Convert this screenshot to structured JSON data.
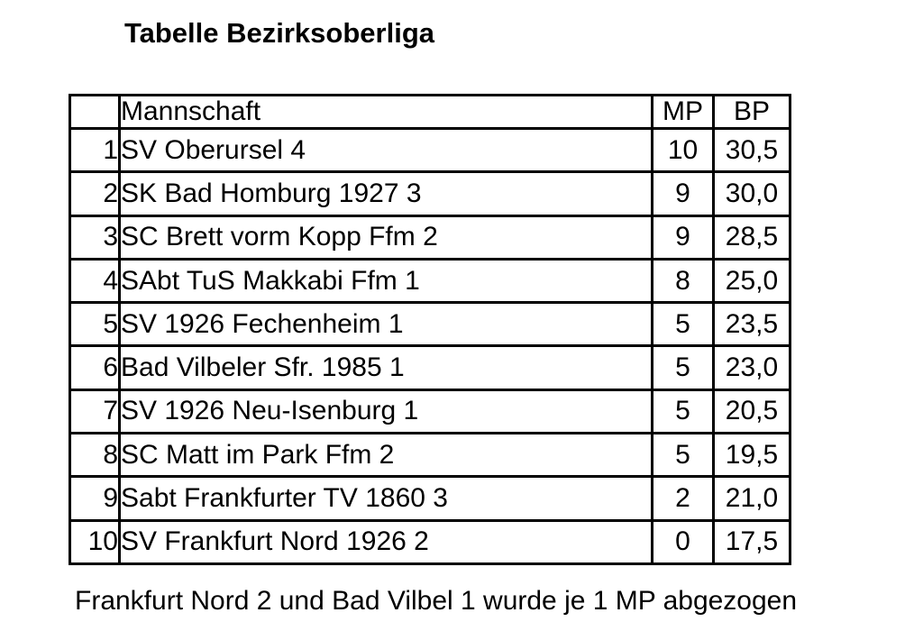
{
  "page": {
    "title": "Tabelle Bezirksoberliga",
    "footnote": "Frankfurt Nord 2 und Bad Vilbel 1 wurde je 1 MP abgezogen"
  },
  "table": {
    "headers": {
      "rank": "",
      "team": "Mannschaft",
      "mp": "MP",
      "bp": "BP"
    },
    "rows": [
      {
        "rank": "1",
        "team": "SV Oberursel 4",
        "mp": "10",
        "bp": "30,5"
      },
      {
        "rank": "2",
        "team": "SK Bad Homburg 1927 3",
        "mp": "9",
        "bp": "30,0"
      },
      {
        "rank": "3",
        "team": "SC Brett vorm Kopp Ffm 2",
        "mp": "9",
        "bp": "28,5"
      },
      {
        "rank": "4",
        "team": "SAbt TuS Makkabi Ffm 1",
        "mp": "8",
        "bp": "25,0"
      },
      {
        "rank": "5",
        "team": "SV 1926 Fechenheim 1",
        "mp": "5",
        "bp": "23,5"
      },
      {
        "rank": "6",
        "team": "Bad Vilbeler Sfr. 1985 1",
        "mp": "5",
        "bp": "23,0"
      },
      {
        "rank": "7",
        "team": "SV 1926 Neu-Isenburg 1",
        "mp": "5",
        "bp": "20,5"
      },
      {
        "rank": "8",
        "team": "SC Matt im Park Ffm 2",
        "mp": "5",
        "bp": "19,5"
      },
      {
        "rank": "9",
        "team": "Sabt Frankfurter TV 1860 3",
        "mp": "2",
        "bp": "21,0"
      },
      {
        "rank": "10",
        "team": "SV Frankfurt Nord 1926 2",
        "mp": "0",
        "bp": "17,5"
      }
    ],
    "colors": {
      "border": "#000000",
      "text": "#000000",
      "background": "#ffffff"
    }
  }
}
